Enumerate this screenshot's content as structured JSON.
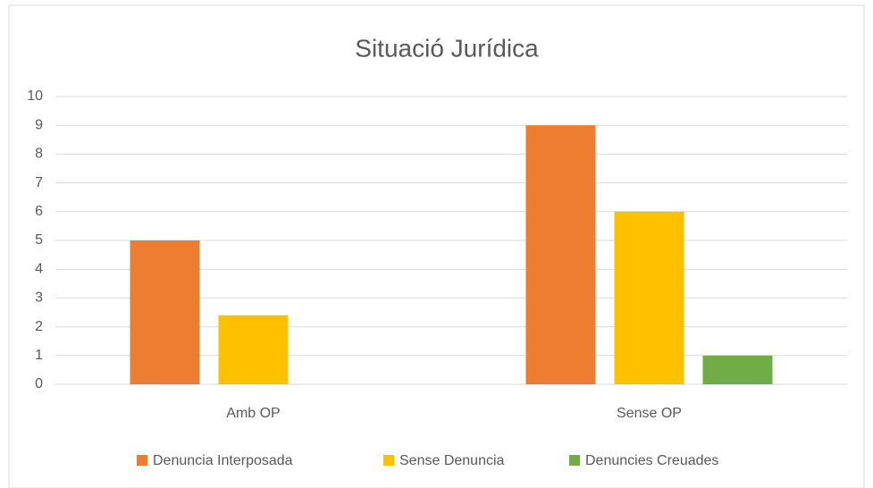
{
  "chart_data": {
    "type": "bar",
    "title": "Situació Jurídica",
    "categories": [
      "Amb OP",
      "Sense OP"
    ],
    "series": [
      {
        "name": "Denuncia Interposada",
        "color": "#ed7d31",
        "values": [
          5,
          9
        ]
      },
      {
        "name": "Sense Denuncia",
        "color": "#ffc000",
        "values": [
          2.4,
          6
        ]
      },
      {
        "name": "Denuncies Creuades",
        "color": "#70ad47",
        "values": [
          0,
          1
        ]
      }
    ],
    "ylim": [
      0,
      10
    ],
    "yticks": [
      0,
      1,
      2,
      3,
      4,
      5,
      6,
      7,
      8,
      9,
      10
    ],
    "grid": true,
    "legend": "bottom"
  }
}
